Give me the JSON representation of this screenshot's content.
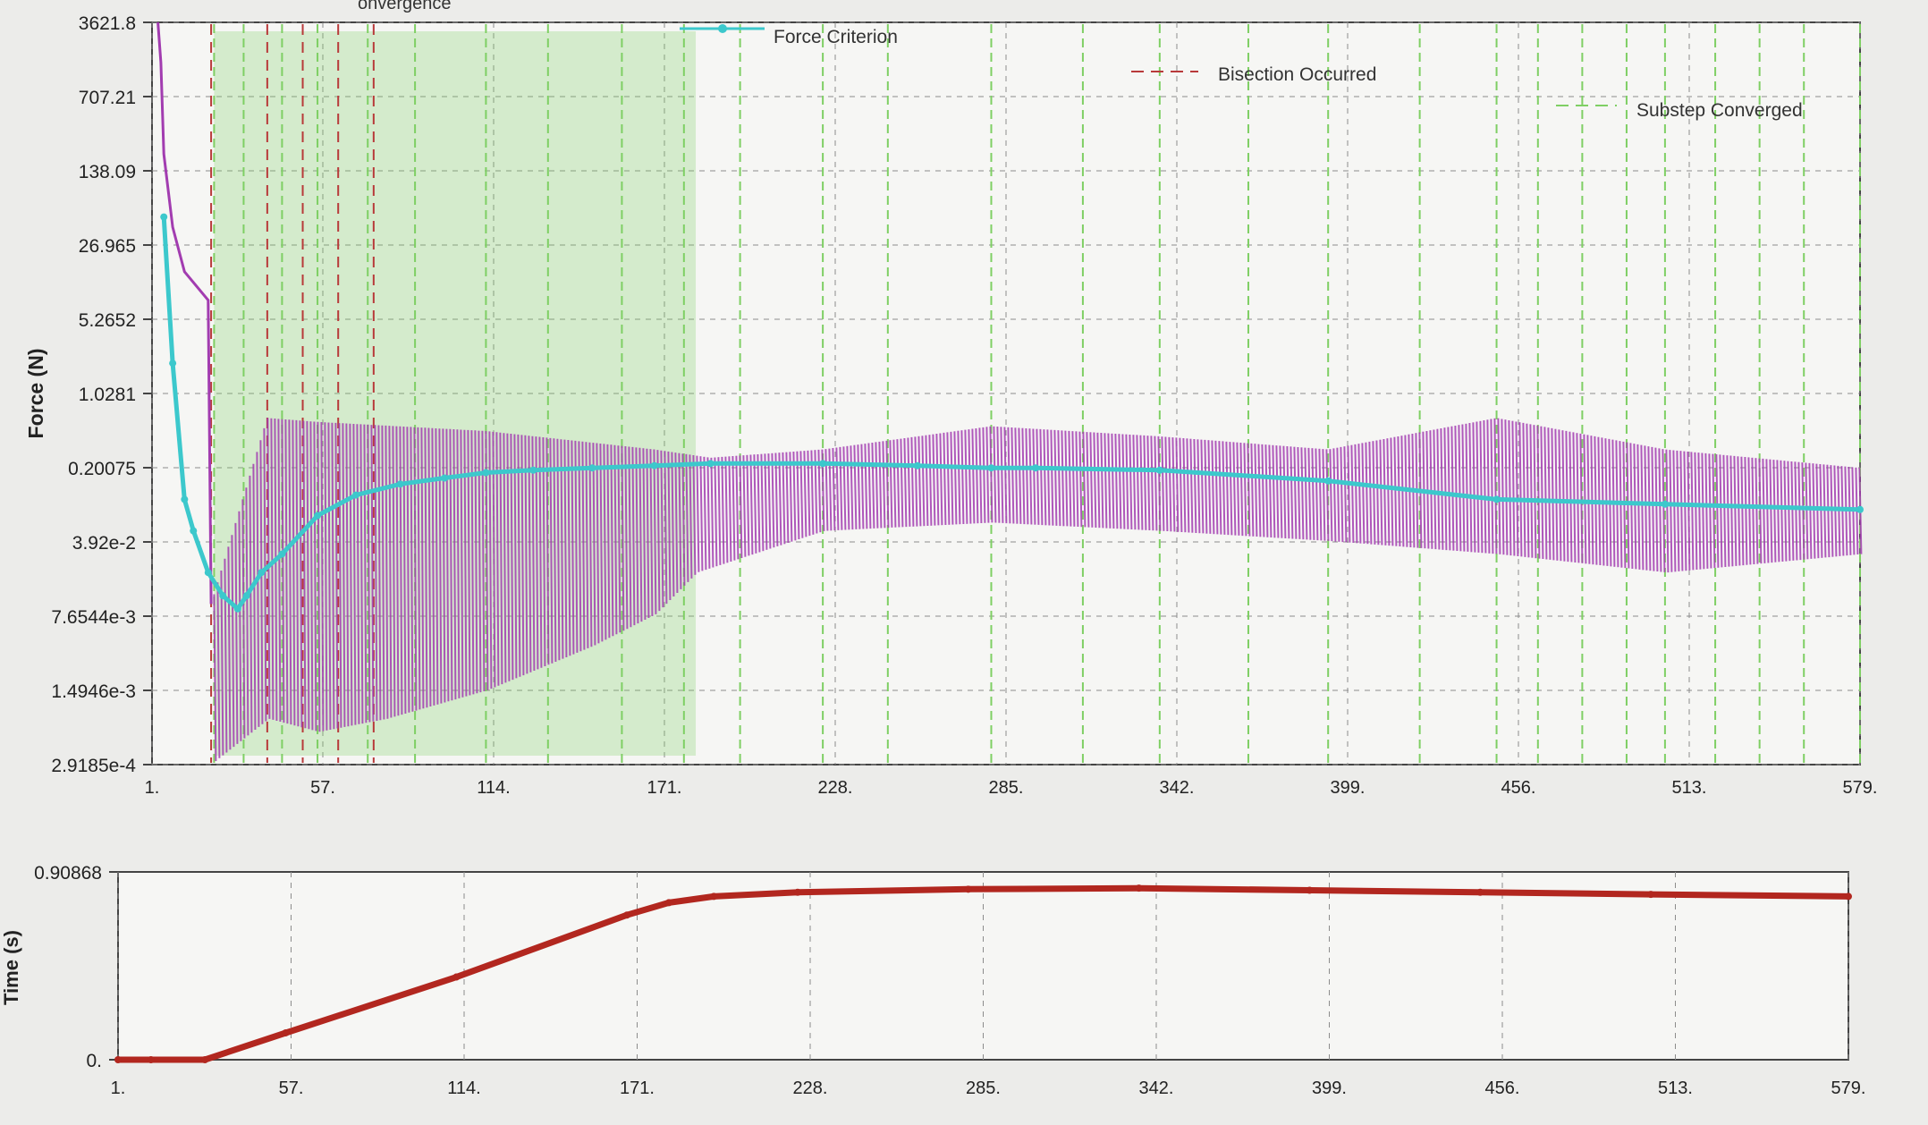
{
  "colors": {
    "force_criterion": "#3cc8cc",
    "force_convergence": "#a23cb0",
    "bisection": "#b83a3a",
    "substep": "#7fcf64",
    "time_series": "#b2271f",
    "grid": "#8c8c8c",
    "axis": "#444444"
  },
  "chart_data": [
    {
      "type": "line",
      "title_fragment": "onvergence",
      "xlabel": "",
      "ylabel": "Force (N)",
      "y_scale": "log",
      "x_ticks": [
        "1.",
        "57.",
        "114.",
        "171.",
        "228.",
        "285.",
        "342.",
        "399.",
        "456.",
        "513.",
        "579."
      ],
      "y_ticks": [
        "3621.8",
        "707.21",
        "138.09",
        "26.965",
        "5.2652",
        "1.0281",
        "0.20075",
        "3.92e-2",
        "7.6544e-3",
        "1.4946e-3",
        "2.9185e-4"
      ],
      "xlim": [
        1,
        579
      ],
      "ylim": [
        0.00029185,
        3621.8
      ],
      "grid": true,
      "legend_position": "top",
      "legend": [
        {
          "label": "Force Criterion",
          "style": "line-marker",
          "color_key": "force_criterion"
        },
        {
          "label": "Bisection Occurred",
          "style": "dashed",
          "color_key": "bisection"
        },
        {
          "label": "Substep Converged",
          "style": "dashed",
          "color_key": "substep"
        }
      ],
      "series": [
        {
          "name": "Force Criterion",
          "color_key": "force_criterion",
          "points": [
            [
              5,
              50
            ],
            [
              8,
              2
            ],
            [
              12,
              0.1
            ],
            [
              15,
              0.05
            ],
            [
              20,
              0.02
            ],
            [
              25,
              0.012
            ],
            [
              30,
              0.009
            ],
            [
              33,
              0.012
            ],
            [
              38,
              0.02
            ],
            [
              45,
              0.03
            ],
            [
              57,
              0.07
            ],
            [
              70,
              0.11
            ],
            [
              85,
              0.14
            ],
            [
              100,
              0.16
            ],
            [
              114,
              0.18
            ],
            [
              130,
              0.19
            ],
            [
              150,
              0.2
            ],
            [
              171,
              0.21
            ],
            [
              190,
              0.22
            ],
            [
              228,
              0.22
            ],
            [
              260,
              0.21
            ],
            [
              285,
              0.2
            ],
            [
              300,
              0.2
            ],
            [
              342,
              0.19
            ],
            [
              399,
              0.15
            ],
            [
              456,
              0.1
            ],
            [
              513,
              0.09
            ],
            [
              579,
              0.08
            ]
          ]
        },
        {
          "name": "Force Convergence",
          "color_key": "force_convergence",
          "envelope": {
            "upper": [
              [
                3,
                3621.8
              ],
              [
                4,
                1500
              ],
              [
                5,
                200
              ],
              [
                8,
                40
              ],
              [
                12,
                15
              ],
              [
                20,
                8
              ],
              [
                21,
                0.01
              ],
              [
                40,
                0.6
              ],
              [
                57,
                0.55
              ],
              [
                114,
                0.45
              ],
              [
                171,
                0.3
              ],
              [
                190,
                0.25
              ],
              [
                228,
                0.3
              ],
              [
                285,
                0.5
              ],
              [
                342,
                0.4
              ],
              [
                399,
                0.3
              ],
              [
                456,
                0.6
              ],
              [
                513,
                0.3
              ],
              [
                579,
                0.2
              ]
            ],
            "lower": [
              [
                21,
                0.0003
              ],
              [
                40,
                0.0008
              ],
              [
                57,
                0.0006
              ],
              [
                80,
                0.0008
              ],
              [
                114,
                0.0015
              ],
              [
                150,
                0.004
              ],
              [
                171,
                0.008
              ],
              [
                185,
                0.02
              ],
              [
                228,
                0.05
              ],
              [
                285,
                0.06
              ],
              [
                342,
                0.05
              ],
              [
                399,
                0.04
              ],
              [
                456,
                0.03
              ],
              [
                513,
                0.02
              ],
              [
                579,
                0.03
              ]
            ]
          }
        }
      ],
      "bisection_x": [
        21,
        40,
        52,
        64,
        76
      ],
      "substep_x": [
        22,
        32,
        45,
        57,
        74,
        90,
        114,
        135,
        160,
        181,
        200,
        228,
        250,
        285,
        316,
        342,
        372,
        399,
        430,
        456,
        470,
        485,
        500,
        513,
        530,
        545,
        560,
        579
      ]
    },
    {
      "type": "line",
      "xlabel": "",
      "ylabel": "Time (s)",
      "x_ticks": [
        "1.",
        "57.",
        "114.",
        "171.",
        "228.",
        "285.",
        "342.",
        "399.",
        "456.",
        "513.",
        "579."
      ],
      "y_ticks": [
        "0.90868",
        "0."
      ],
      "xlim": [
        1,
        579
      ],
      "ylim": [
        0,
        0.90868
      ],
      "grid": true,
      "series": [
        {
          "name": "Time",
          "color_key": "time_series",
          "points": [
            [
              1,
              0
            ],
            [
              12,
              0
            ],
            [
              30,
              0
            ],
            [
              57,
              0.13
            ],
            [
              114,
              0.4
            ],
            [
              171,
              0.7
            ],
            [
              185,
              0.76
            ],
            [
              200,
              0.79
            ],
            [
              228,
              0.81
            ],
            [
              285,
              0.825
            ],
            [
              342,
              0.83
            ],
            [
              399,
              0.82
            ],
            [
              456,
              0.81
            ],
            [
              513,
              0.8
            ],
            [
              579,
              0.79
            ]
          ]
        }
      ]
    }
  ]
}
